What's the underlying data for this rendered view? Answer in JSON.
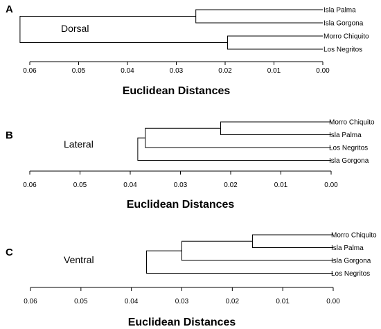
{
  "chart_data": [
    {
      "type": "dendrogram",
      "panel": "A",
      "title": "Dorsal",
      "xlabel": "Euclidean Distances",
      "xlim": [
        0.062,
        0.0
      ],
      "xticks": [
        "0.06",
        "0.05",
        "0.04",
        "0.03",
        "0.02",
        "0.01",
        "0.00"
      ],
      "tick_values": [
        0.06,
        0.05,
        0.04,
        0.03,
        0.02,
        0.01,
        0.0
      ],
      "leaves": [
        "Isla Palma",
        "Isla Gorgona",
        "Morro Chiquito",
        "Los Negritos"
      ],
      "merges": [
        {
          "a": 0,
          "b": 1,
          "height": 0.026
        },
        {
          "a": 2,
          "b": 3,
          "height": 0.0195
        },
        {
          "a": 4,
          "b": 5,
          "height": 0.062
        }
      ]
    },
    {
      "type": "dendrogram",
      "panel": "B",
      "title": "Lateral",
      "xlabel": "Euclidean Distances",
      "xlim": [
        0.062,
        0.0
      ],
      "xticks": [
        "0.06",
        "0.05",
        "0.04",
        "0.03",
        "0.02",
        "0.01",
        "0.00"
      ],
      "tick_values": [
        0.06,
        0.05,
        0.04,
        0.03,
        0.02,
        0.01,
        0.0
      ],
      "leaves": [
        "Morro Chiquito",
        "Isla Palma",
        "Los Negritos",
        "Isla Gorgona"
      ],
      "merges": [
        {
          "a": 0,
          "b": 1,
          "height": 0.022
        },
        {
          "a": 4,
          "b": 2,
          "height": 0.037
        },
        {
          "a": 5,
          "b": 3,
          "height": 0.0385
        }
      ]
    },
    {
      "type": "dendrogram",
      "panel": "C",
      "title": "Ventral",
      "xlabel": "Euclidean Distances",
      "xlim": [
        0.062,
        0.0
      ],
      "xticks": [
        "0.06",
        "0.05",
        "0.04",
        "0.03",
        "0.02",
        "0.01",
        "0.00"
      ],
      "tick_values": [
        0.06,
        0.05,
        0.04,
        0.03,
        0.02,
        0.01,
        0.0
      ],
      "leaves": [
        "Morro Chiquito",
        "Isla Palma",
        "Isla Gorgona",
        "Los Negritos"
      ],
      "merges": [
        {
          "a": 0,
          "b": 1,
          "height": 0.016
        },
        {
          "a": 4,
          "b": 2,
          "height": 0.03
        },
        {
          "a": 5,
          "b": 3,
          "height": 0.037
        }
      ]
    }
  ]
}
